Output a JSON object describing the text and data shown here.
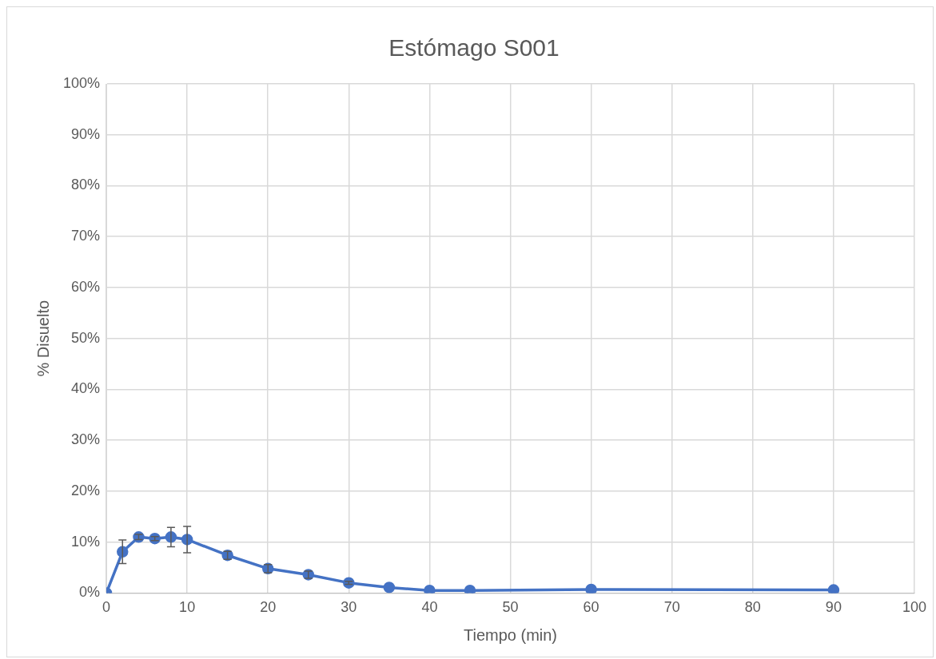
{
  "chart_data": {
    "type": "line",
    "title": "Estómago S001",
    "xlabel": "Tiempo (min)",
    "ylabel": "% Disuelto",
    "x": [
      0,
      2,
      4,
      6,
      8,
      10,
      15,
      20,
      25,
      30,
      35,
      40,
      45,
      60,
      90
    ],
    "series": [
      {
        "color": "#4472c4",
        "values": [
          0,
          8.1,
          11.0,
          10.7,
          11.0,
          10.5,
          7.4,
          4.8,
          3.6,
          2.0,
          1.1,
          0.5,
          0.5,
          0.7,
          0.6
        ],
        "errors": [
          null,
          2.3,
          0.5,
          0.4,
          1.9,
          2.6,
          0.8,
          0.8,
          0.7,
          0.3,
          null,
          null,
          null,
          null,
          null
        ]
      }
    ],
    "xlim": [
      0,
      100
    ],
    "xticks": [
      0,
      10,
      20,
      30,
      40,
      50,
      60,
      70,
      80,
      90,
      100
    ],
    "ylim": [
      0,
      100
    ],
    "yticks": [
      {
        "value": 0,
        "label": "0%"
      },
      {
        "value": 10,
        "label": "10%"
      },
      {
        "value": 20,
        "label": "20%"
      },
      {
        "value": 30,
        "label": "30%"
      },
      {
        "value": 40,
        "label": "40%"
      },
      {
        "value": 50,
        "label": "50%"
      },
      {
        "value": 60,
        "label": "60%"
      },
      {
        "value": 70,
        "label": "70%"
      },
      {
        "value": 80,
        "label": "80%"
      },
      {
        "value": 90,
        "label": "90%"
      },
      {
        "value": 100,
        "label": "100%"
      }
    ],
    "grid": true,
    "legend": false,
    "marker": "circle",
    "line_style": "solid"
  }
}
